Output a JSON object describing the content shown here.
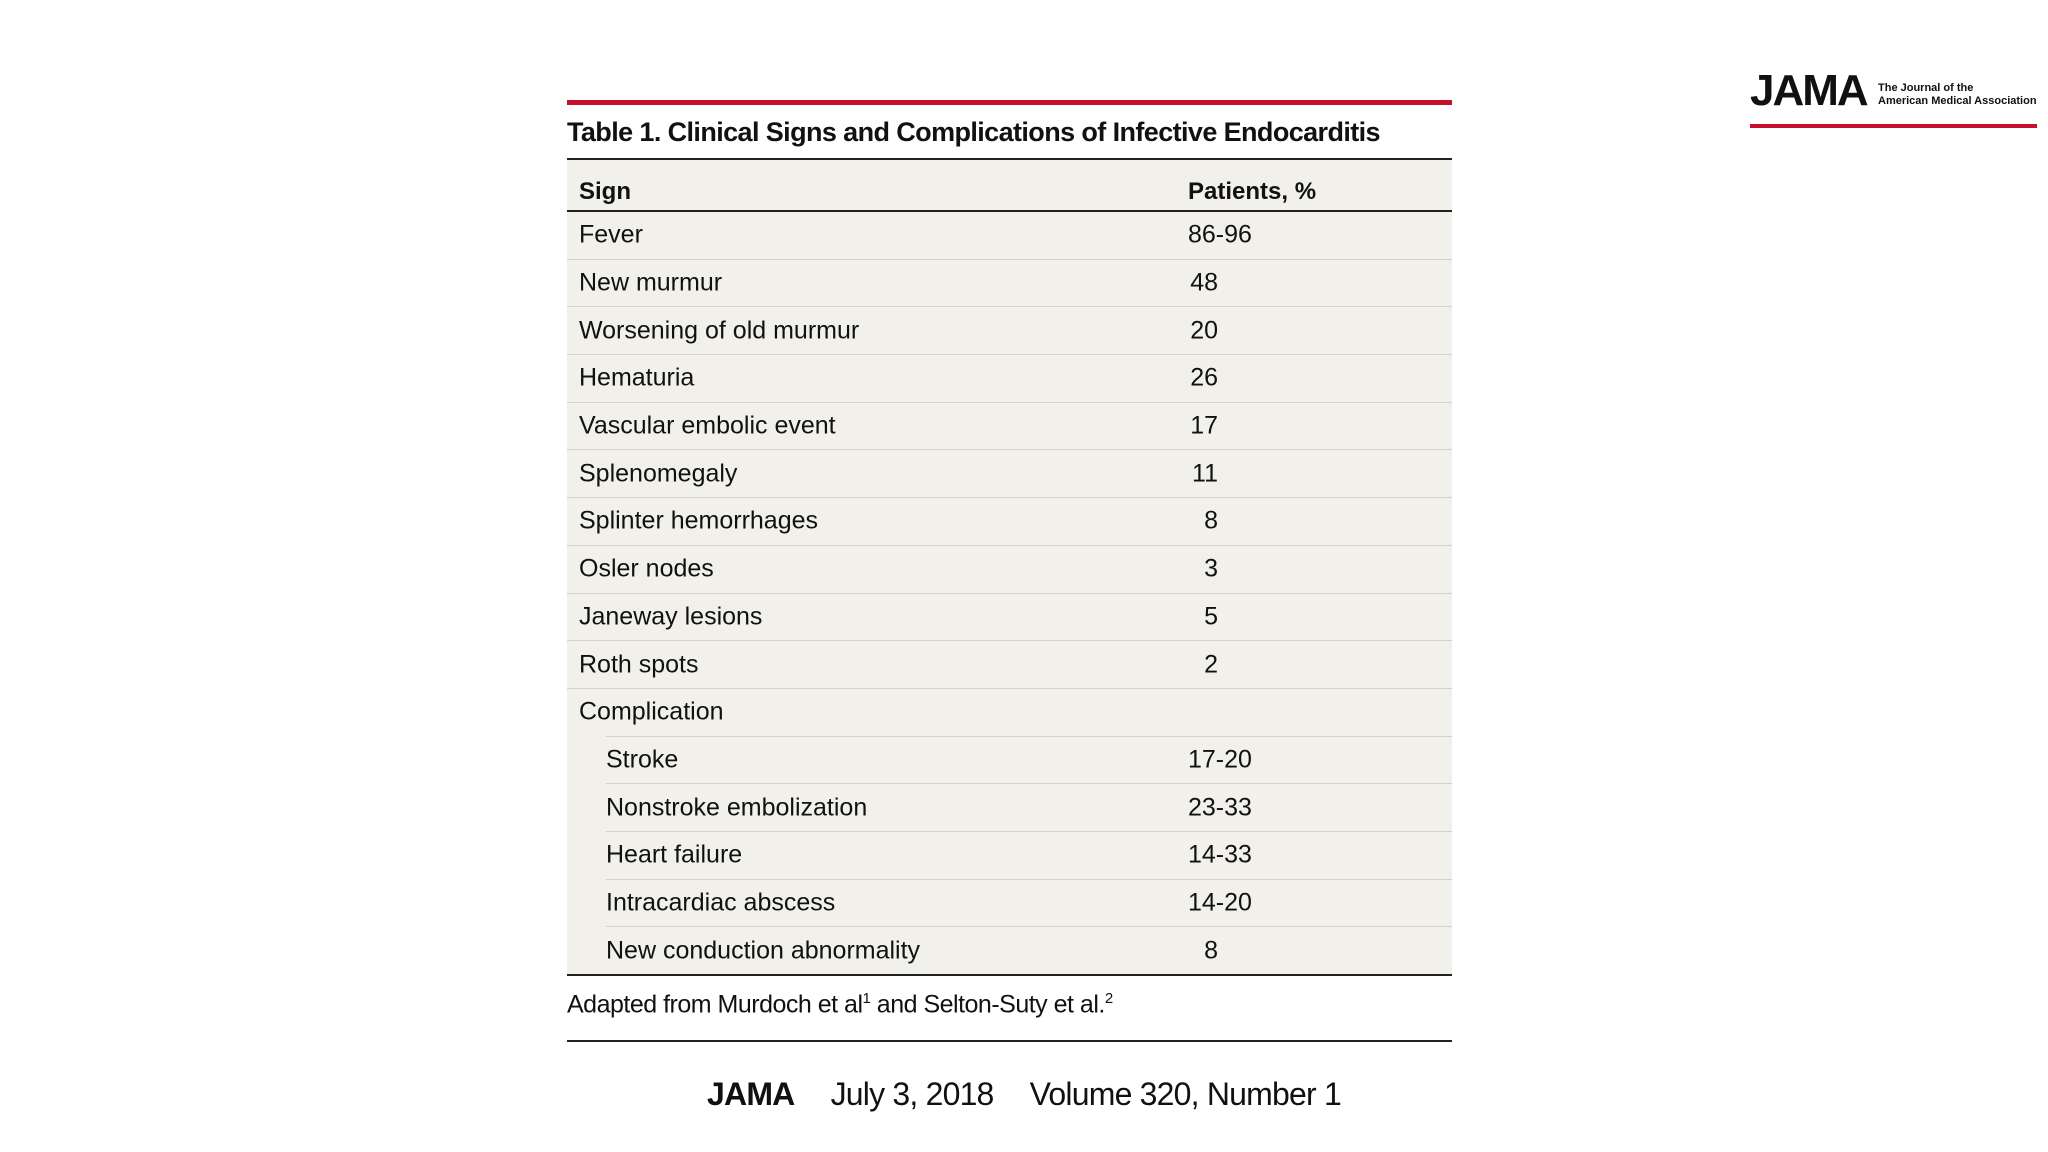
{
  "logo": {
    "name": "JAMA",
    "line1": "The Journal of the",
    "line2": "American Medical Association"
  },
  "table": {
    "title": "Table 1. Clinical Signs and Complications of Infective Endocarditis",
    "header": [
      "Sign",
      "Patients, %"
    ],
    "rows": [
      [
        "Fever",
        "86-96"
      ],
      [
        "New murmur",
        "48"
      ],
      [
        "Worsening of old murmur",
        "20"
      ],
      [
        "Hematuria",
        "26"
      ],
      [
        "Vascular embolic event",
        "17"
      ],
      [
        "Splenomegaly",
        "11"
      ],
      [
        "Splinter hemorrhages",
        "8"
      ],
      [
        "Osler nodes",
        "3"
      ],
      [
        "Janeway lesions",
        "5"
      ],
      [
        "Roth spots",
        "2"
      ]
    ],
    "group_label": "Complication",
    "group_rows": [
      [
        "Stroke",
        "17-20"
      ],
      [
        "Nonstroke embolization",
        "23-33"
      ],
      [
        "Heart failure",
        "14-33"
      ],
      [
        "Intracardiac abscess",
        "14-20"
      ],
      [
        "New conduction abnormality",
        "8"
      ]
    ],
    "footnote": [
      "Adapted from Murdoch et al",
      "1",
      " and Selton-Suty et al.",
      "2"
    ]
  },
  "footer": {
    "journal": "JAMA",
    "date": "July 3, 2018",
    "issue": "Volume 320, Number 1"
  }
}
